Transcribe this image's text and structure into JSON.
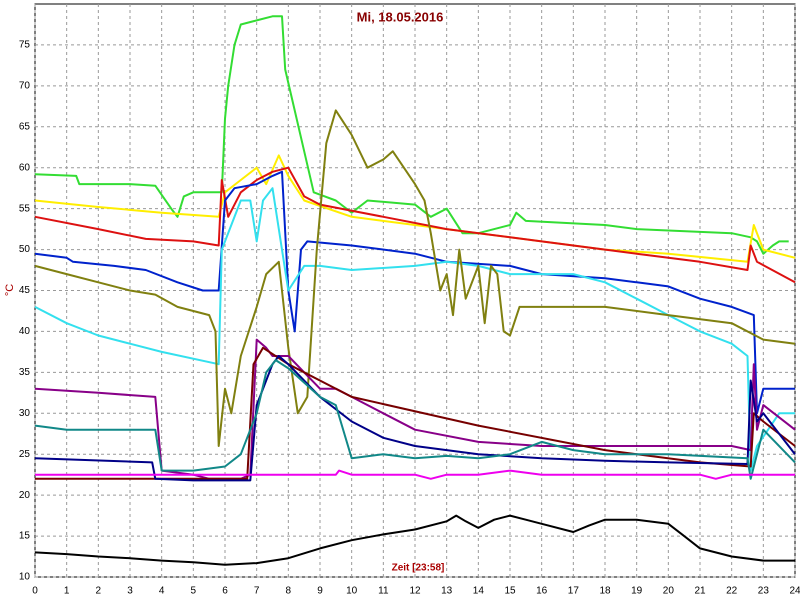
{
  "chart_data": {
    "type": "line",
    "title": "Mi, 18.05.2016",
    "y_label": "°C",
    "x_label": "Zeit [23:58]",
    "xlim": [
      0,
      24
    ],
    "xticks": [
      0,
      1,
      2,
      3,
      4,
      5,
      6,
      7,
      8,
      9,
      10,
      11,
      12,
      13,
      14,
      15,
      16,
      17,
      18,
      19,
      20,
      21,
      22,
      23,
      24
    ],
    "ylim": [
      10,
      80
    ],
    "yticks": [
      10,
      15,
      20,
      25,
      30,
      35,
      40,
      45,
      50,
      55,
      60,
      65,
      70,
      75
    ],
    "grid": true,
    "series": [
      {
        "color": "#33dd33",
        "x": [
          0,
          1.3,
          1.4,
          3,
          3.8,
          4.3,
          4.5,
          4.7,
          5,
          5.9,
          6,
          6.1,
          6.3,
          6.5,
          7,
          7.5,
          7.8,
          7.9,
          8.2,
          8.5,
          8.8,
          9.5,
          10,
          10.5,
          12,
          12.5,
          13,
          13.5,
          14,
          15,
          15.2,
          15.5,
          18,
          19,
          22,
          22.6,
          22.8,
          23,
          23.3,
          23.5,
          23.8
        ],
        "values": [
          59.2,
          59,
          58,
          58,
          57.8,
          55,
          54,
          56.5,
          57,
          57,
          66,
          70,
          75,
          77.5,
          78,
          78.5,
          78.5,
          72,
          67,
          62,
          57,
          56,
          54.5,
          56,
          55.5,
          54,
          55,
          52,
          52,
          53,
          54.5,
          53.5,
          53,
          52.5,
          52,
          51.5,
          51,
          49.5,
          50.5,
          51,
          51
        ]
      },
      {
        "color": "#ffee00",
        "x": [
          0,
          2,
          4,
          5.8,
          6,
          6.5,
          7,
          7.3,
          7.7,
          8,
          8.5,
          10,
          12,
          14,
          16,
          18,
          20,
          22.5,
          22.7,
          23,
          24
        ],
        "values": [
          56,
          55.2,
          54.5,
          54,
          57,
          58.5,
          60,
          58,
          61.5,
          59,
          56,
          54,
          53,
          52,
          51,
          50,
          49.5,
          48.5,
          53,
          50,
          49
        ]
      },
      {
        "color": "#dd1111",
        "x": [
          0,
          2,
          3.5,
          5,
          5.8,
          5.9,
          6.1,
          6.5,
          7,
          7.5,
          8,
          8.5,
          9,
          11,
          13,
          15,
          17,
          19,
          21,
          22.5,
          22.6,
          22.8,
          24
        ],
        "values": [
          54,
          52.5,
          51.3,
          51,
          50.5,
          58.5,
          54,
          57,
          58.5,
          59.5,
          60,
          56.5,
          55.5,
          54,
          52.5,
          51.5,
          50.5,
          49.5,
          48.5,
          47.5,
          50.5,
          48.5,
          46
        ]
      },
      {
        "color": "#0022cc",
        "x": [
          0,
          1,
          1.2,
          2.5,
          3.5,
          4.5,
          5.3,
          5.8,
          6,
          6.3,
          7,
          7.5,
          7.8,
          8,
          8.2,
          8.4,
          8.6,
          10,
          12,
          13,
          15,
          16,
          18,
          19,
          20,
          21,
          22,
          22.7,
          22.8,
          23,
          24
        ],
        "values": [
          49.5,
          49,
          48.5,
          48,
          47.5,
          46,
          45,
          45,
          56,
          57.5,
          58,
          59,
          59.5,
          45,
          40,
          50,
          51,
          50.5,
          49.5,
          48.5,
          48,
          47,
          46.5,
          46,
          45.5,
          44,
          43,
          42,
          30,
          33,
          33
        ]
      },
      {
        "color": "#33e0ee",
        "x": [
          0,
          1,
          2,
          3,
          4,
          5.8,
          5.9,
          6.5,
          6.8,
          7,
          7.2,
          7.5,
          8,
          8.5,
          9,
          10,
          12,
          13,
          14,
          15,
          16,
          17,
          18,
          19,
          20,
          21,
          22,
          22.5,
          22.6,
          22.8,
          23.5,
          24
        ],
        "values": [
          43,
          41,
          39.5,
          38.5,
          37.5,
          36,
          50,
          56,
          56,
          51,
          56,
          57.5,
          45,
          48,
          48,
          47.5,
          48,
          48.5,
          48,
          47,
          47,
          47,
          46,
          44,
          42,
          40,
          38.5,
          37,
          23,
          26,
          30,
          30
        ]
      },
      {
        "color": "#808010",
        "x": [
          0,
          1,
          2,
          3,
          3.8,
          4.5,
          5.5,
          5.7,
          5.8,
          6,
          6.2,
          6.5,
          7,
          7.3,
          7.7,
          8,
          8.3,
          8.6,
          8.9,
          9.2,
          9.5,
          10,
          10.5,
          11,
          11.3,
          12,
          12.3,
          12.5,
          12.8,
          13,
          13.2,
          13.4,
          13.6,
          14,
          14.2,
          14.4,
          14.6,
          14.8,
          15,
          15.3,
          16,
          18,
          20,
          22,
          23,
          24
        ],
        "values": [
          48,
          47,
          46,
          45,
          44.5,
          43,
          42,
          40,
          26,
          33,
          30,
          37,
          43,
          47,
          48.5,
          38,
          30,
          32,
          50,
          63,
          67,
          64,
          60,
          61,
          62,
          58,
          56,
          52,
          45,
          47,
          42,
          50,
          44,
          48,
          41,
          48,
          47,
          40,
          39.5,
          43,
          43,
          43,
          42,
          41,
          39,
          38.5
        ]
      },
      {
        "color": "#880088",
        "x": [
          0,
          2,
          3.8,
          4,
          5,
          5.5,
          6.5,
          6.8,
          7,
          7.3,
          7.5,
          8,
          9,
          9.5,
          10,
          11,
          12,
          14,
          16,
          18,
          20,
          22,
          22.6,
          22.7,
          22.8,
          23,
          24
        ],
        "values": [
          33,
          32.5,
          32,
          23,
          22.5,
          22,
          22,
          22.5,
          39,
          38,
          37,
          37,
          33,
          33,
          32,
          30,
          28,
          26.5,
          26,
          26,
          26,
          26,
          25.5,
          36,
          28,
          31,
          28
        ]
      },
      {
        "color": "#770000",
        "x": [
          0,
          6.7,
          6.9,
          7.2,
          8,
          10,
          14,
          18,
          21,
          22.6,
          22.7,
          23,
          24
        ],
        "values": [
          22,
          22,
          36,
          38,
          36,
          32,
          28.5,
          25.5,
          24,
          23.5,
          30,
          29,
          26
        ]
      },
      {
        "color": "#000088",
        "x": [
          0,
          3.7,
          3.8,
          5,
          6.8,
          7,
          7.5,
          7.7,
          8,
          9,
          10,
          11,
          12,
          14,
          16,
          18,
          20,
          22.5,
          22.6,
          22.8,
          23,
          24
        ],
        "values": [
          24.5,
          24,
          22,
          21.8,
          21.8,
          31,
          36,
          37,
          36,
          32,
          29,
          27,
          26,
          25,
          24.5,
          24.2,
          24,
          23.8,
          34,
          29,
          30,
          25
        ]
      },
      {
        "color": "#118888",
        "x": [
          0,
          1,
          3.8,
          4,
          5,
          6,
          6.5,
          7,
          7.3,
          7.6,
          8,
          9,
          9.5,
          10,
          11,
          12,
          13,
          14,
          15,
          16,
          17,
          18,
          20,
          22.5,
          22.6,
          23,
          24
        ],
        "values": [
          28.5,
          28,
          28,
          23,
          23,
          23.5,
          25,
          30,
          35,
          36.5,
          35.5,
          32,
          31,
          24.5,
          25,
          24.5,
          24.8,
          24.5,
          25,
          26.5,
          25.5,
          25,
          25,
          24.5,
          22,
          28,
          24
        ]
      },
      {
        "color": "#ee00ee",
        "x": [
          0,
          9.5,
          9.6,
          10,
          12,
          12.5,
          13,
          14,
          15,
          16,
          21,
          21.5,
          22,
          24
        ],
        "values": [
          22.5,
          22.5,
          23,
          22.5,
          22.5,
          22,
          22.5,
          22.5,
          23,
          22.5,
          22.5,
          22,
          22.5,
          22.5
        ]
      },
      {
        "color": "#000000",
        "x": [
          0,
          1,
          2,
          3,
          4,
          5,
          6,
          7,
          8,
          9,
          10,
          11,
          12,
          13,
          13.3,
          13.6,
          14,
          14.5,
          15,
          15.5,
          16,
          17,
          17.5,
          18,
          19,
          20,
          20.5,
          21,
          22,
          23,
          24
        ],
        "values": [
          13,
          12.8,
          12.5,
          12.3,
          12,
          11.8,
          11.5,
          11.7,
          12.3,
          13.5,
          14.5,
          15.2,
          15.8,
          16.8,
          17.5,
          16.8,
          16,
          17,
          17.5,
          17,
          16.5,
          15.5,
          16.3,
          17,
          17,
          16.5,
          15,
          13.5,
          12.5,
          12,
          12
        ]
      }
    ]
  }
}
